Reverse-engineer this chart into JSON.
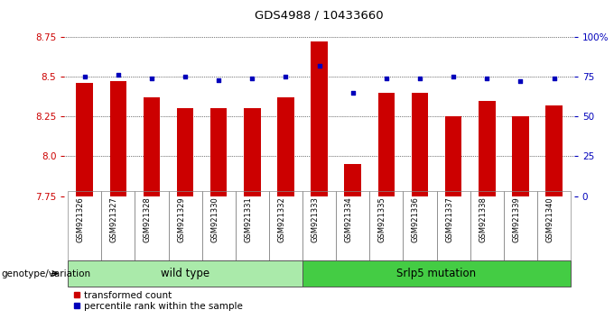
{
  "title": "GDS4988 / 10433660",
  "samples": [
    "GSM921326",
    "GSM921327",
    "GSM921328",
    "GSM921329",
    "GSM921330",
    "GSM921331",
    "GSM921332",
    "GSM921333",
    "GSM921334",
    "GSM921335",
    "GSM921336",
    "GSM921337",
    "GSM921338",
    "GSM921339",
    "GSM921340"
  ],
  "red_values": [
    8.46,
    8.47,
    8.37,
    8.3,
    8.3,
    8.3,
    8.37,
    8.72,
    7.95,
    8.4,
    8.4,
    8.25,
    8.35,
    8.25,
    8.32
  ],
  "blue_values": [
    75,
    76,
    74,
    75,
    73,
    74,
    75,
    82,
    65,
    74,
    74,
    75,
    74,
    72,
    74
  ],
  "ylim_left": [
    7.75,
    8.75
  ],
  "ylim_right": [
    0,
    100
  ],
  "yticks_left": [
    7.75,
    8.0,
    8.25,
    8.5,
    8.75
  ],
  "yticks_right": [
    0,
    25,
    50,
    75,
    100
  ],
  "ytick_labels_right": [
    "0",
    "25",
    "50",
    "75",
    "100%"
  ],
  "n_wild": 7,
  "n_mut": 8,
  "wild_type_label": "wild type",
  "mutation_label": "Srlp5 mutation",
  "genotype_label": "genotype/variation",
  "legend_red": "transformed count",
  "legend_blue": "percentile rank within the sample",
  "bar_color": "#cc0000",
  "dot_color": "#0000bb",
  "bar_width": 0.5,
  "wild_type_color": "#aaeaaa",
  "mutation_color": "#44cc44",
  "tick_bg_color": "#bbbbbb"
}
